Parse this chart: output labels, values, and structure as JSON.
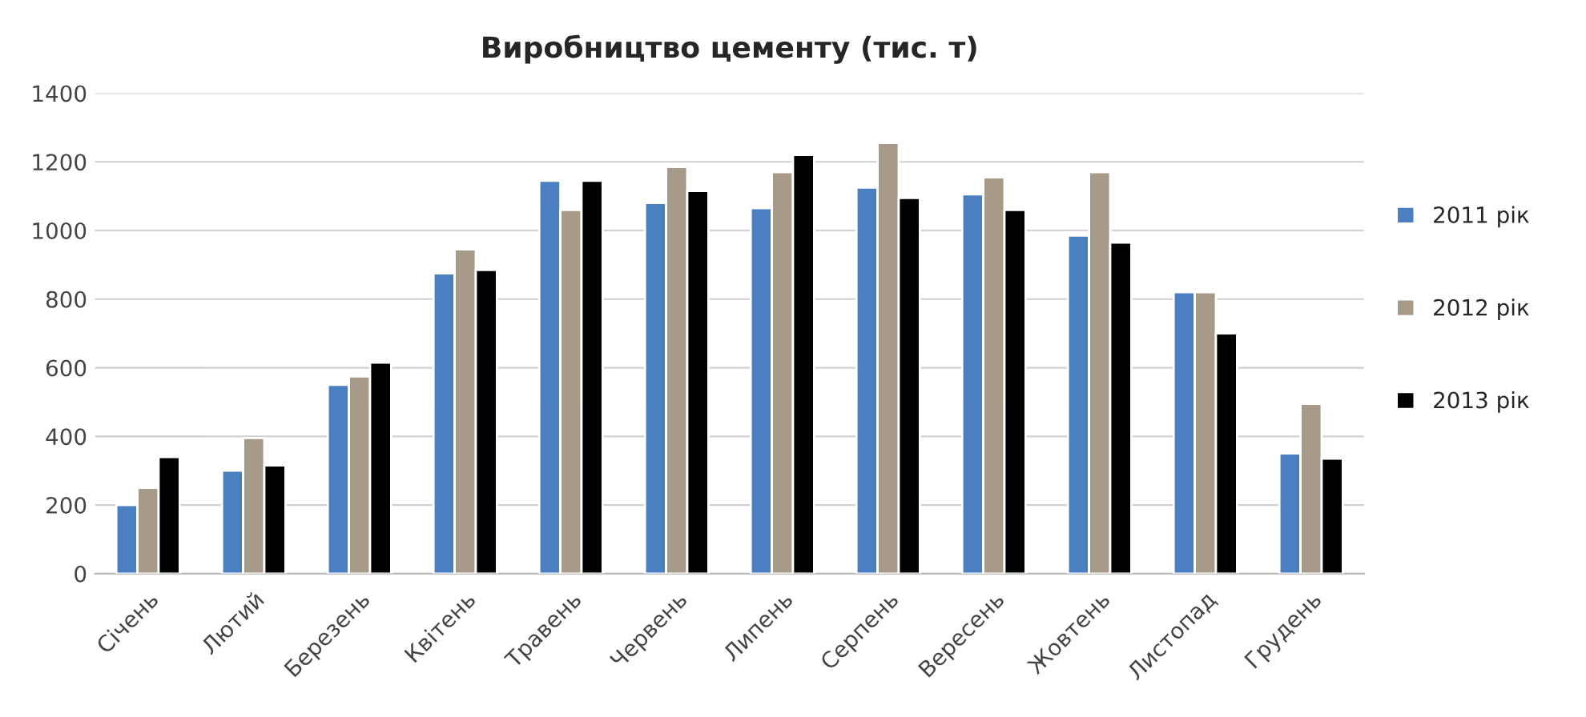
{
  "chart_data": {
    "type": "bar",
    "title": "Виробництво цементу (тис. т)",
    "categories": [
      "Січень",
      "Лютий",
      "Березень",
      "Квітень",
      "Травень",
      "Червень",
      "Липень",
      "Серпень",
      "Вересень",
      "Жовтень",
      "Листопад",
      "Грудень"
    ],
    "series": [
      {
        "name": "2011 рік",
        "color": "#4a7fc1",
        "values": [
          200,
          300,
          550,
          875,
          1145,
          1080,
          1065,
          1125,
          1105,
          985,
          820,
          350
        ]
      },
      {
        "name": "2012 рік",
        "color": "#a89a88",
        "values": [
          250,
          395,
          575,
          945,
          1060,
          1185,
          1170,
          1255,
          1155,
          1170,
          820,
          495
        ]
      },
      {
        "name": "2013 рік",
        "color": "#000000",
        "values": [
          340,
          315,
          615,
          885,
          1145,
          1115,
          1220,
          1095,
          1060,
          965,
          700,
          335
        ]
      }
    ],
    "ylim": [
      0,
      1400
    ],
    "yticks": [
      0,
      200,
      400,
      600,
      800,
      1000,
      1200,
      1400
    ],
    "grid": "y",
    "legend": "right"
  }
}
